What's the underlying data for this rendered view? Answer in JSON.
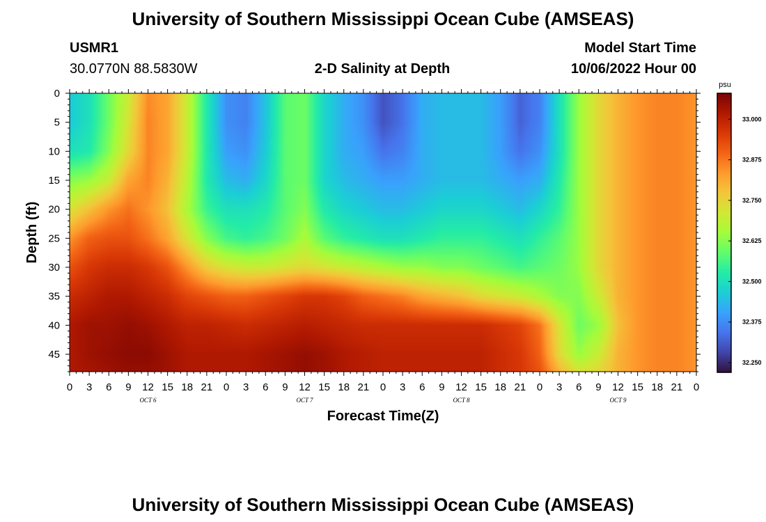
{
  "header": {
    "title": "University of Southern Mississippi Ocean Cube (AMSEAS)",
    "station": "USMR1",
    "coords": "30.0770N  88.5830W",
    "plot_title": "2-D Salinity at Depth",
    "start_label": "Model Start Time",
    "start_value": "10/06/2022 Hour 00"
  },
  "footer": {
    "title": "University of Southern Mississippi Ocean Cube (AMSEAS)"
  },
  "chart_data": {
    "type": "heatmap",
    "title": "2-D Salinity at Depth",
    "xlabel": "Forecast Time(Z)",
    "ylabel": "Depth (ft)",
    "x_range_hours": [
      0,
      96
    ],
    "x_tick_step_hours": 3,
    "x_tick_labels": [
      "0",
      "3",
      "6",
      "9",
      "12",
      "15",
      "18",
      "21",
      "0",
      "3",
      "6",
      "9",
      "12",
      "15",
      "18",
      "21",
      "0",
      "3",
      "6",
      "9",
      "12",
      "15",
      "18",
      "21",
      "0",
      "3",
      "6",
      "9",
      "12",
      "15",
      "18",
      "21",
      "0"
    ],
    "date_labels": [
      {
        "label": "OCT 6",
        "hour": 12
      },
      {
        "label": "OCT 7",
        "hour": 36
      },
      {
        "label": "OCT 8",
        "hour": 60
      },
      {
        "label": "OCT 9",
        "hour": 84
      }
    ],
    "y_range_ft": [
      0,
      48
    ],
    "y_tick_labels": [
      "0",
      "5",
      "10",
      "15",
      "20",
      "25",
      "30",
      "35",
      "40",
      "45"
    ],
    "colorbar": {
      "unit": "psu",
      "range": [
        32.22,
        33.08
      ],
      "tick_labels": [
        "33.000",
        "32.875",
        "32.750",
        "32.625",
        "32.500",
        "32.375",
        "32.250"
      ],
      "tick_values": [
        33.0,
        32.875,
        32.75,
        32.625,
        32.5,
        32.375,
        32.25
      ],
      "colors": [
        "#30123b",
        "#4145ab",
        "#4675ed",
        "#39a2fc",
        "#1bcfd4",
        "#24eca6",
        "#61fc6c",
        "#a4fc3b",
        "#d1e834",
        "#f3c63a",
        "#fe9b2d",
        "#f36315",
        "#d93806",
        "#b11901",
        "#7a0403"
      ]
    },
    "depth_rows_ft": [
      0,
      5,
      10,
      15,
      20,
      25,
      30,
      35,
      40,
      45,
      48
    ],
    "time_cols_hours": [
      0,
      3,
      6,
      9,
      12,
      15,
      18,
      21,
      24,
      27,
      30,
      33,
      36,
      39,
      42,
      45,
      48,
      51,
      54,
      57,
      60,
      63,
      66,
      69,
      72,
      75,
      78,
      81,
      84,
      87,
      90,
      93,
      96
    ],
    "values_psu": [
      [
        32.46,
        32.5,
        32.6,
        32.7,
        32.85,
        32.82,
        32.7,
        32.52,
        32.38,
        32.36,
        32.45,
        32.58,
        32.6,
        32.48,
        32.42,
        32.38,
        32.3,
        32.34,
        32.42,
        32.44,
        32.44,
        32.44,
        32.4,
        32.32,
        32.36,
        32.5,
        32.64,
        32.74,
        32.8,
        32.84,
        32.86,
        32.86,
        32.84
      ],
      [
        32.46,
        32.5,
        32.6,
        32.72,
        32.86,
        32.82,
        32.7,
        32.52,
        32.38,
        32.36,
        32.45,
        32.58,
        32.6,
        32.48,
        32.42,
        32.38,
        32.3,
        32.34,
        32.42,
        32.44,
        32.44,
        32.44,
        32.4,
        32.32,
        32.36,
        32.5,
        32.64,
        32.74,
        32.8,
        32.84,
        32.86,
        32.86,
        32.84
      ],
      [
        32.5,
        32.52,
        32.62,
        32.74,
        32.86,
        32.82,
        32.7,
        32.52,
        32.4,
        32.38,
        32.46,
        32.58,
        32.6,
        32.48,
        32.42,
        32.4,
        32.34,
        32.36,
        32.42,
        32.44,
        32.44,
        32.44,
        32.4,
        32.34,
        32.38,
        32.5,
        32.64,
        32.74,
        32.8,
        32.84,
        32.86,
        32.86,
        32.84
      ],
      [
        32.62,
        32.64,
        32.7,
        32.82,
        32.86,
        32.8,
        32.68,
        32.52,
        32.44,
        32.42,
        32.48,
        32.58,
        32.6,
        32.48,
        32.44,
        32.42,
        32.4,
        32.4,
        32.42,
        32.44,
        32.44,
        32.44,
        32.42,
        32.4,
        32.42,
        32.52,
        32.64,
        32.74,
        32.8,
        32.84,
        32.86,
        32.86,
        32.84
      ],
      [
        32.72,
        32.78,
        32.84,
        32.88,
        32.84,
        32.78,
        32.66,
        32.55,
        32.5,
        32.5,
        32.52,
        32.58,
        32.62,
        32.52,
        32.48,
        32.46,
        32.44,
        32.44,
        32.46,
        32.48,
        32.48,
        32.48,
        32.46,
        32.44,
        32.48,
        32.54,
        32.64,
        32.74,
        32.8,
        32.84,
        32.86,
        32.86,
        32.84
      ],
      [
        32.84,
        32.9,
        32.92,
        32.92,
        32.88,
        32.82,
        32.72,
        32.62,
        32.56,
        32.54,
        32.56,
        32.6,
        32.66,
        32.58,
        32.54,
        32.52,
        32.5,
        32.5,
        32.52,
        32.54,
        32.54,
        32.54,
        32.52,
        32.5,
        32.54,
        32.58,
        32.64,
        32.74,
        32.8,
        32.84,
        32.86,
        32.86,
        32.84
      ],
      [
        32.92,
        32.96,
        32.98,
        32.98,
        32.96,
        32.92,
        32.84,
        32.76,
        32.72,
        32.7,
        32.7,
        32.72,
        32.74,
        32.72,
        32.7,
        32.68,
        32.66,
        32.64,
        32.64,
        32.62,
        32.62,
        32.6,
        32.58,
        32.56,
        32.58,
        32.6,
        32.64,
        32.74,
        32.8,
        32.84,
        32.86,
        32.86,
        32.84
      ],
      [
        32.98,
        33.0,
        33.02,
        33.02,
        33.0,
        32.98,
        32.94,
        32.92,
        32.9,
        32.9,
        32.92,
        32.94,
        32.96,
        32.96,
        32.94,
        32.9,
        32.88,
        32.86,
        32.82,
        32.8,
        32.78,
        32.74,
        32.72,
        32.7,
        32.66,
        32.62,
        32.62,
        32.7,
        32.8,
        32.84,
        32.86,
        32.86,
        32.84
      ],
      [
        33.02,
        33.04,
        33.04,
        33.05,
        33.04,
        33.02,
        33.0,
        33.0,
        32.99,
        32.98,
        32.99,
        33.0,
        33.01,
        33.0,
        32.99,
        32.98,
        32.98,
        32.98,
        32.98,
        32.98,
        32.98,
        32.98,
        32.96,
        32.94,
        32.88,
        32.72,
        32.6,
        32.64,
        32.78,
        32.84,
        32.86,
        32.86,
        32.84
      ],
      [
        33.02,
        33.04,
        33.05,
        33.06,
        33.06,
        33.04,
        33.02,
        33.02,
        33.02,
        33.02,
        33.03,
        33.04,
        33.05,
        33.04,
        33.02,
        33.01,
        33.0,
        33.0,
        33.0,
        33.0,
        33.0,
        33.0,
        32.98,
        32.96,
        32.9,
        32.74,
        32.64,
        32.7,
        32.8,
        32.84,
        32.86,
        32.86,
        32.84
      ],
      [
        33.02,
        33.03,
        33.04,
        33.05,
        33.05,
        33.04,
        33.02,
        33.02,
        33.02,
        33.02,
        33.03,
        33.04,
        33.05,
        33.04,
        33.02,
        33.01,
        33.0,
        33.0,
        33.0,
        33.0,
        33.0,
        33.0,
        32.98,
        32.96,
        32.92,
        32.8,
        32.72,
        32.74,
        32.8,
        32.84,
        32.86,
        32.86,
        32.84
      ]
    ]
  }
}
